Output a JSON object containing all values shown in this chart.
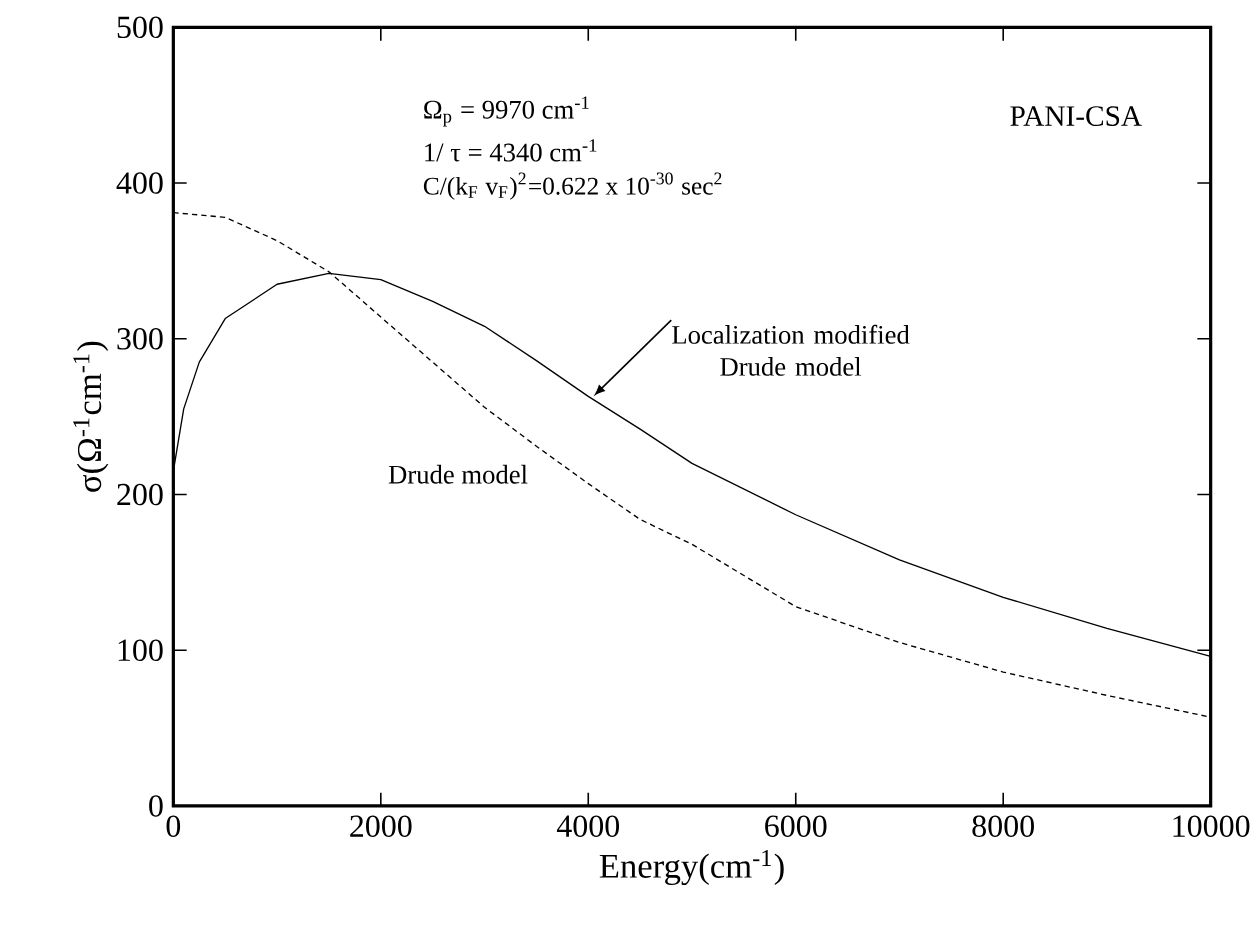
{
  "chart_data": {
    "type": "line",
    "xlabel": "Energy(cm$^{-1}$)",
    "ylabel": "σ(Ω$^{-1}$cm$^{-1}$)",
    "xlim": [
      0,
      10000
    ],
    "xticks": [
      0,
      2000,
      4000,
      6000,
      8000,
      10000
    ],
    "ylim": [
      0,
      500
    ],
    "yticks": [
      0,
      100,
      200,
      300,
      400,
      500
    ],
    "grid": false,
    "legend": false,
    "marker": "none",
    "annotations": [
      "Ω$_{p}$  = 9970 cm$^{-1}$",
      "1/ τ = 4340 cm$^{-1}$",
      "C/(k$_{F}$ v$_{F}$)$^{2}$=0.622 x 10$^{-30}$ sec$^{2}$",
      "PANI-CSA"
    ],
    "series": [
      {
        "name": "Localization modified Drude model",
        "color": "#000000",
        "line_style": "solid",
        "x": [
          0,
          100,
          250,
          500,
          1000,
          1500,
          2000,
          2500,
          3000,
          3500,
          4000,
          4500,
          5000,
          6000,
          7000,
          8000,
          9000,
          10000
        ],
        "values": [
          215,
          255,
          285,
          313,
          335,
          342,
          338,
          324,
          308,
          286,
          263,
          242,
          220,
          187,
          158,
          134,
          114,
          96
        ]
      },
      {
        "name": "Drude model",
        "color": "#000000",
        "line_style": "dashed",
        "x": [
          0,
          500,
          1000,
          1500,
          2000,
          2500,
          3000,
          3500,
          4000,
          4500,
          5000,
          6000,
          7000,
          8000,
          9000,
          10000
        ],
        "values": [
          381,
          378,
          363,
          343,
          314,
          285,
          256,
          231,
          207,
          184,
          168,
          128,
          105,
          86,
          71,
          57
        ]
      }
    ]
  }
}
